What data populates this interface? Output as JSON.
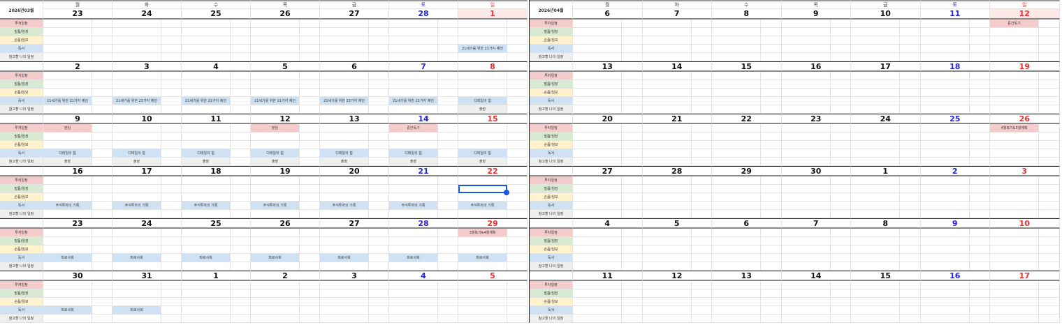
{
  "weekdays": [
    "월",
    "화",
    "수",
    "목",
    "금",
    "토",
    "일"
  ],
  "categories": [
    "투자일정",
    "발품/임장",
    "손품/임보",
    "독서",
    "참고할 나의 일정"
  ],
  "colors": {
    "saturday": "#2323e0",
    "sunday": "#f02c2c",
    "invest": "#f4cccc",
    "field": "#d9ead3",
    "desk": "#fff2cc",
    "reading": "#cfe2f3",
    "personal": "#efefef",
    "selection": "#1a56db"
  },
  "calendars": [
    {
      "title": "2026년03월",
      "weeks": [
        {
          "dates": [
            "23",
            "24",
            "25",
            "26",
            "27",
            "28",
            "1"
          ],
          "highlight_day": 6,
          "events": [
            {
              "day": 6,
              "row": 3,
              "text": "21세기를 위한 21가지 제언"
            }
          ]
        },
        {
          "dates": [
            "2",
            "3",
            "4",
            "5",
            "6",
            "7",
            "8"
          ],
          "events": [
            {
              "day": 0,
              "row": 3,
              "text": "21세기를 위한 21가지 제언"
            },
            {
              "day": 1,
              "row": 3,
              "text": "21세기를 위한 21가지 제언"
            },
            {
              "day": 2,
              "row": 3,
              "text": "21세기를 위한 21가지 제언"
            },
            {
              "day": 3,
              "row": 3,
              "text": "21세기를 위한 21가지 제언"
            },
            {
              "day": 4,
              "row": 3,
              "text": "21세기를 위한 21가지 제언"
            },
            {
              "day": 5,
              "row": 3,
              "text": "21세기를 위한 21가지 제언"
            },
            {
              "day": 6,
              "row": 3,
              "text": "디테일의 힘"
            },
            {
              "day": 6,
              "row": 4,
              "text": "출장"
            }
          ]
        },
        {
          "dates": [
            "9",
            "10",
            "11",
            "12",
            "13",
            "14",
            "15"
          ],
          "events": [
            {
              "day": 0,
              "row": 0,
              "text": "분임"
            },
            {
              "day": 3,
              "row": 0,
              "text": "분임"
            },
            {
              "day": 5,
              "row": 0,
              "text": "중간독기"
            },
            {
              "day": 0,
              "row": 3,
              "text": "디테일의 힘"
            },
            {
              "day": 1,
              "row": 3,
              "text": "디테일의 힘"
            },
            {
              "day": 2,
              "row": 3,
              "text": "디테일의 힘"
            },
            {
              "day": 3,
              "row": 3,
              "text": "디테일의 힘"
            },
            {
              "day": 4,
              "row": 3,
              "text": "디테일의 힘"
            },
            {
              "day": 5,
              "row": 3,
              "text": "디테일의 힘"
            },
            {
              "day": 6,
              "row": 3,
              "text": "디테일의 힘"
            },
            {
              "day": 0,
              "row": 4,
              "text": "출장"
            },
            {
              "day": 1,
              "row": 4,
              "text": "출장"
            },
            {
              "day": 2,
              "row": 4,
              "text": "출장"
            },
            {
              "day": 3,
              "row": 4,
              "text": "출장"
            },
            {
              "day": 4,
              "row": 4,
              "text": "출장"
            },
            {
              "day": 5,
              "row": 4,
              "text": "출장"
            },
            {
              "day": 6,
              "row": 4,
              "text": "출장"
            }
          ]
        },
        {
          "dates": [
            "16",
            "17",
            "18",
            "19",
            "20",
            "21",
            "22"
          ],
          "selected": {
            "day": 6,
            "row": 1
          },
          "events": [
            {
              "day": 0,
              "row": 3,
              "text": "주식투자의 기록"
            },
            {
              "day": 1,
              "row": 3,
              "text": "주식투자의 기록"
            },
            {
              "day": 2,
              "row": 3,
              "text": "주식투자의 기록"
            },
            {
              "day": 3,
              "row": 3,
              "text": "주식투자의 기록"
            },
            {
              "day": 4,
              "row": 3,
              "text": "주식투자의 기록"
            },
            {
              "day": 5,
              "row": 3,
              "text": "주식투자의 기록"
            },
            {
              "day": 6,
              "row": 3,
              "text": "주식투자의 기록"
            }
          ]
        },
        {
          "dates": [
            "23",
            "24",
            "25",
            "26",
            "27",
            "28",
            "29"
          ],
          "events": [
            {
              "day": 6,
              "row": 0,
              "text": "3월복기&4월계획"
            },
            {
              "day": 0,
              "row": 3,
              "text": "피로사회"
            },
            {
              "day": 1,
              "row": 3,
              "text": "피로사회"
            },
            {
              "day": 2,
              "row": 3,
              "text": "피로사회"
            },
            {
              "day": 3,
              "row": 3,
              "text": "피로사회"
            },
            {
              "day": 4,
              "row": 3,
              "text": "피로사회"
            },
            {
              "day": 5,
              "row": 3,
              "text": "피로사회"
            },
            {
              "day": 6,
              "row": 3,
              "text": "피로사회"
            }
          ]
        },
        {
          "dates": [
            "30",
            "31",
            "1",
            "2",
            "3",
            "4",
            "5"
          ],
          "events": [
            {
              "day": 0,
              "row": 3,
              "text": "피로사회"
            },
            {
              "day": 1,
              "row": 3,
              "text": "피로사회"
            }
          ]
        }
      ]
    },
    {
      "title": "2026년04월",
      "weeks": [
        {
          "dates": [
            "6",
            "7",
            "8",
            "9",
            "10",
            "11",
            "12"
          ],
          "highlight_day": 6,
          "events": [
            {
              "day": 6,
              "row": 0,
              "text": "중간독기"
            }
          ]
        },
        {
          "dates": [
            "13",
            "14",
            "15",
            "16",
            "17",
            "18",
            "19"
          ],
          "events": []
        },
        {
          "dates": [
            "20",
            "21",
            "22",
            "23",
            "24",
            "25",
            "26"
          ],
          "events": [
            {
              "day": 6,
              "row": 0,
              "text": "4월복기&5월계획"
            }
          ]
        },
        {
          "dates": [
            "27",
            "28",
            "29",
            "30",
            "1",
            "2",
            "3"
          ],
          "events": []
        },
        {
          "dates": [
            "4",
            "5",
            "6",
            "7",
            "8",
            "9",
            "10"
          ],
          "events": []
        },
        {
          "dates": [
            "11",
            "12",
            "13",
            "14",
            "15",
            "16",
            "17"
          ],
          "events": []
        }
      ]
    }
  ]
}
